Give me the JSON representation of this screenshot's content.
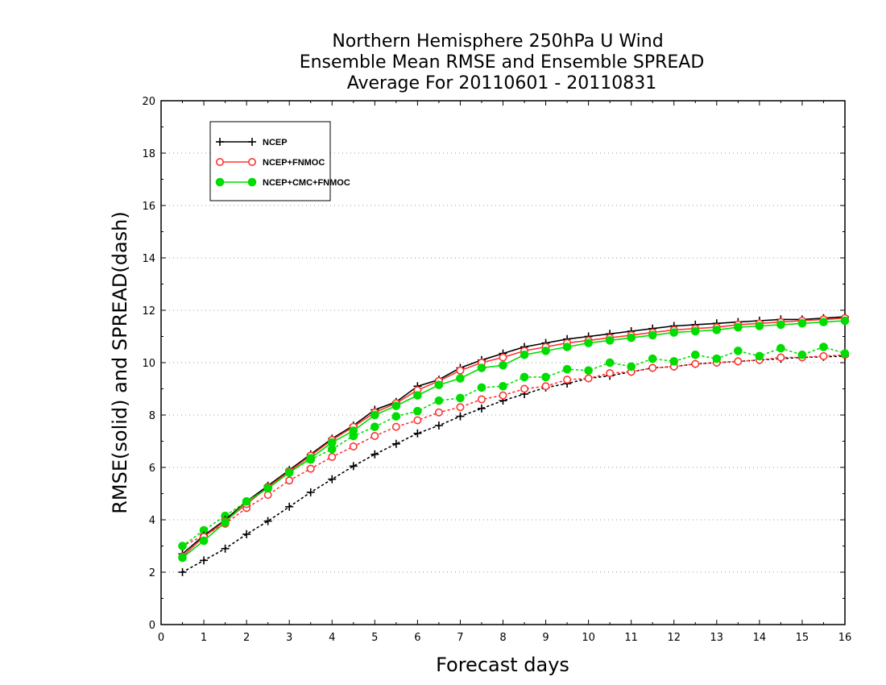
{
  "chart_data": {
    "type": "line",
    "title_lines": [
      "Northern Hemisphere 250hPa U Wind",
      "Ensemble Mean RMSE and Ensemble SPREAD",
      "Average For 20110601 - 20110831"
    ],
    "xlabel": "Forecast days",
    "ylabel": "RMSE(solid) and SPREAD(dash)",
    "xlim": [
      0,
      16
    ],
    "ylim": [
      0,
      20
    ],
    "xticks": [
      "0",
      "1",
      "2",
      "3",
      "4",
      "5",
      "6",
      "7",
      "8",
      "9",
      "10",
      "11",
      "12",
      "13",
      "14",
      "15",
      "16"
    ],
    "yticks": [
      "0",
      "2",
      "4",
      "6",
      "8",
      "10",
      "12",
      "14",
      "16",
      "18",
      "20"
    ],
    "grid": "horizontal dotted",
    "legend_position": "top-left",
    "x": [
      0.5,
      1,
      1.5,
      2,
      2.5,
      3,
      3.5,
      4,
      4.5,
      5,
      5.5,
      6,
      6.5,
      7,
      7.5,
      8,
      8.5,
      9,
      9.5,
      10,
      10.5,
      11,
      11.5,
      12,
      12.5,
      13,
      13.5,
      14,
      14.5,
      15,
      15.5,
      16
    ],
    "series": [
      {
        "name": "NCEP",
        "color": "#000000",
        "marker": "plus",
        "rmse": [
          2.7,
          3.4,
          4.0,
          4.7,
          5.3,
          5.9,
          6.5,
          7.1,
          7.6,
          8.2,
          8.5,
          9.1,
          9.35,
          9.8,
          10.1,
          10.35,
          10.6,
          10.75,
          10.9,
          11.0,
          11.1,
          11.2,
          11.3,
          11.4,
          11.45,
          11.5,
          11.55,
          11.6,
          11.65,
          11.65,
          11.7,
          11.75
        ],
        "spread": [
          2.0,
          2.45,
          2.9,
          3.45,
          3.95,
          4.5,
          5.05,
          5.55,
          6.05,
          6.5,
          6.9,
          7.3,
          7.6,
          7.95,
          8.25,
          8.55,
          8.8,
          9.05,
          9.2,
          9.4,
          9.5,
          9.65,
          9.8,
          9.85,
          9.95,
          10.0,
          10.05,
          10.1,
          10.15,
          10.2,
          10.22,
          10.25
        ]
      },
      {
        "name": "NCEP+FNMOC",
        "color": "#ff3333",
        "marker": "open-circle",
        "rmse": [
          2.6,
          3.35,
          3.95,
          4.6,
          5.25,
          5.85,
          6.45,
          7.05,
          7.55,
          8.1,
          8.45,
          8.95,
          9.3,
          9.7,
          10.0,
          10.2,
          10.45,
          10.6,
          10.75,
          10.85,
          10.95,
          11.05,
          11.15,
          11.25,
          11.3,
          11.35,
          11.45,
          11.5,
          11.55,
          11.6,
          11.65,
          11.7
        ],
        "spread": [
          3.0,
          3.4,
          3.85,
          4.45,
          4.95,
          5.5,
          5.95,
          6.4,
          6.8,
          7.2,
          7.55,
          7.8,
          8.1,
          8.3,
          8.6,
          8.75,
          9.0,
          9.1,
          9.35,
          9.4,
          9.6,
          9.65,
          9.8,
          9.85,
          9.95,
          10.0,
          10.05,
          10.1,
          10.2,
          10.2,
          10.25,
          10.3
        ]
      },
      {
        "name": "NCEP+CMC+FNMOC",
        "color": "#00dd00",
        "marker": "filled-circle",
        "rmse": [
          2.55,
          3.2,
          3.9,
          4.7,
          5.2,
          5.8,
          6.35,
          6.95,
          7.4,
          8.0,
          8.35,
          8.75,
          9.15,
          9.4,
          9.8,
          9.9,
          10.3,
          10.45,
          10.6,
          10.75,
          10.85,
          10.95,
          11.05,
          11.15,
          11.2,
          11.25,
          11.35,
          11.4,
          11.45,
          11.5,
          11.55,
          11.6
        ],
        "spread": [
          3.0,
          3.6,
          4.15,
          4.7,
          5.25,
          5.85,
          6.3,
          6.7,
          7.2,
          7.55,
          7.95,
          8.15,
          8.55,
          8.65,
          9.05,
          9.1,
          9.45,
          9.45,
          9.75,
          9.7,
          10.0,
          9.85,
          10.15,
          10.05,
          10.3,
          10.15,
          10.45,
          10.25,
          10.55,
          10.3,
          10.6,
          10.35
        ]
      }
    ]
  }
}
